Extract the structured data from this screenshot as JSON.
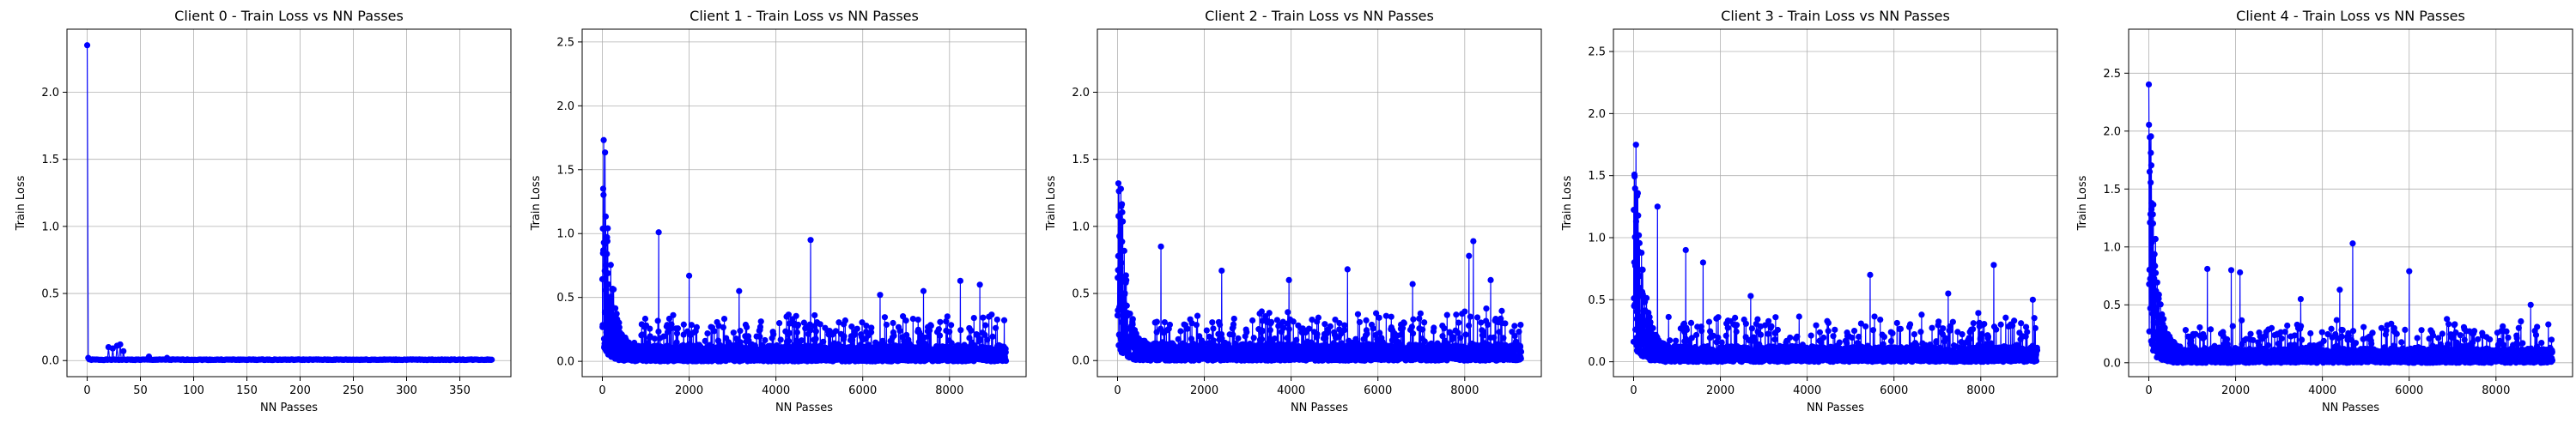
{
  "chart_data": [
    {
      "type": "line",
      "title": "Client 0 - Train Loss vs NN Passes",
      "xlabel": "NN Passes",
      "ylabel": "Train Loss",
      "xlim": [
        -19,
        398
      ],
      "ylim": [
        -0.12,
        2.47
      ],
      "xticks": [
        0,
        50,
        100,
        150,
        200,
        250,
        300,
        350
      ],
      "yticks": [
        0.0,
        0.5,
        1.0,
        1.5,
        2.0
      ],
      "ytick_labels": [
        "0.0",
        "0.5",
        "1.0",
        "1.5",
        "2.0"
      ],
      "grid": true,
      "color": "#0000ff",
      "series": [
        {
          "x_range": [
            0,
            380
          ],
          "points": 381,
          "seed": 1,
          "profile": {
            "spikes": [
              [
                0,
                2.35
              ],
              [
                1,
                0.02
              ],
              [
                20,
                0.1
              ],
              [
                24,
                0.09
              ],
              [
                28,
                0.11
              ],
              [
                31,
                0.12
              ],
              [
                34,
                0.07
              ],
              [
                58,
                0.03
              ],
              [
                75,
                0.02
              ]
            ],
            "floor": 0.004,
            "noise": 0.005
          }
        }
      ]
    },
    {
      "type": "line",
      "title": "Client 1 - Train Loss vs NN Passes",
      "xlabel": "NN Passes",
      "ylabel": "Train Loss",
      "xlim": [
        -465,
        9765
      ],
      "ylim": [
        -0.12,
        2.6
      ],
      "xticks": [
        0,
        2000,
        4000,
        6000,
        8000
      ],
      "yticks": [
        0.0,
        0.5,
        1.0,
        1.5,
        2.0,
        2.5
      ],
      "ytick_labels": [
        "0.0",
        "0.5",
        "1.0",
        "1.5",
        "2.0",
        "2.5"
      ],
      "grid": true,
      "color": "#0000ff",
      "series": [
        {
          "x_range": [
            0,
            9300
          ],
          "points": 2400,
          "seed": 2,
          "profile": {
            "peak": 2.45,
            "decay": 150,
            "base": 0.12,
            "noise": 0.28,
            "spikes": [
              [
                1300,
                1.01
              ],
              [
                4800,
                0.95
              ],
              [
                2000,
                0.67
              ],
              [
                8250,
                0.63
              ],
              [
                6400,
                0.52
              ],
              [
                3150,
                0.55
              ],
              [
                7400,
                0.55
              ],
              [
                8700,
                0.6
              ]
            ]
          }
        }
      ]
    },
    {
      "type": "line",
      "title": "Client 2 - Train Loss vs NN Passes",
      "xlabel": "NN Passes",
      "ylabel": "Train Loss",
      "xlim": [
        -465,
        9765
      ],
      "ylim": [
        -0.12,
        2.47
      ],
      "xticks": [
        0,
        2000,
        4000,
        6000,
        8000
      ],
      "yticks": [
        0.0,
        0.5,
        1.0,
        1.5,
        2.0
      ],
      "ytick_labels": [
        "0.0",
        "0.5",
        "1.0",
        "1.5",
        "2.0"
      ],
      "grid": true,
      "color": "#0000ff",
      "series": [
        {
          "x_range": [
            0,
            9300
          ],
          "points": 2400,
          "seed": 3,
          "profile": {
            "peak": 2.35,
            "decay": 140,
            "base": 0.12,
            "noise": 0.28,
            "spikes": [
              [
                8200,
                0.89
              ],
              [
                1000,
                0.85
              ],
              [
                5300,
                0.68
              ],
              [
                2400,
                0.67
              ],
              [
                3950,
                0.6
              ],
              [
                6800,
                0.57
              ],
              [
                8100,
                0.78
              ],
              [
                8600,
                0.6
              ]
            ]
          }
        }
      ]
    },
    {
      "type": "line",
      "title": "Client 3 - Train Loss vs NN Passes",
      "xlabel": "NN Passes",
      "ylabel": "Train Loss",
      "xlim": [
        -465,
        9765
      ],
      "ylim": [
        -0.12,
        2.68
      ],
      "xticks": [
        0,
        2000,
        4000,
        6000,
        8000
      ],
      "yticks": [
        0.0,
        0.5,
        1.0,
        1.5,
        2.0,
        2.5
      ],
      "ytick_labels": [
        "0.0",
        "0.5",
        "1.0",
        "1.5",
        "2.0",
        "2.5"
      ],
      "grid": true,
      "color": "#0000ff",
      "series": [
        {
          "x_range": [
            0,
            9300
          ],
          "points": 2400,
          "seed": 4,
          "profile": {
            "peak": 2.55,
            "decay": 160,
            "base": 0.12,
            "noise": 0.28,
            "spikes": [
              [
                550,
                1.25
              ],
              [
                1200,
                0.9
              ],
              [
                8300,
                0.78
              ],
              [
                5450,
                0.7
              ],
              [
                1600,
                0.8
              ],
              [
                2700,
                0.53
              ],
              [
                7250,
                0.55
              ],
              [
                9200,
                0.5
              ]
            ]
          }
        }
      ]
    },
    {
      "type": "line",
      "title": "Client 4 - Train Loss vs NN Passes",
      "xlabel": "NN Passes",
      "ylabel": "Train Loss",
      "xlim": [
        -465,
        9765
      ],
      "ylim": [
        -0.12,
        2.88
      ],
      "xticks": [
        0,
        2000,
        4000,
        6000,
        8000
      ],
      "yticks": [
        0.0,
        0.5,
        1.0,
        1.5,
        2.0,
        2.5
      ],
      "ytick_labels": [
        "0.0",
        "0.5",
        "1.0",
        "1.5",
        "2.0",
        "2.5"
      ],
      "grid": true,
      "color": "#0000ff",
      "series": [
        {
          "x_range": [
            0,
            9300
          ],
          "points": 2400,
          "seed": 5,
          "profile": {
            "peak": 2.75,
            "decay": 150,
            "base": 0.12,
            "noise": 0.28,
            "spikes": [
              [
                4700,
                1.03
              ],
              [
                6000,
                0.79
              ],
              [
                1350,
                0.81
              ],
              [
                2100,
                0.78
              ],
              [
                1900,
                0.8
              ],
              [
                4400,
                0.63
              ],
              [
                8800,
                0.5
              ],
              [
                3500,
                0.55
              ]
            ]
          }
        }
      ]
    }
  ]
}
